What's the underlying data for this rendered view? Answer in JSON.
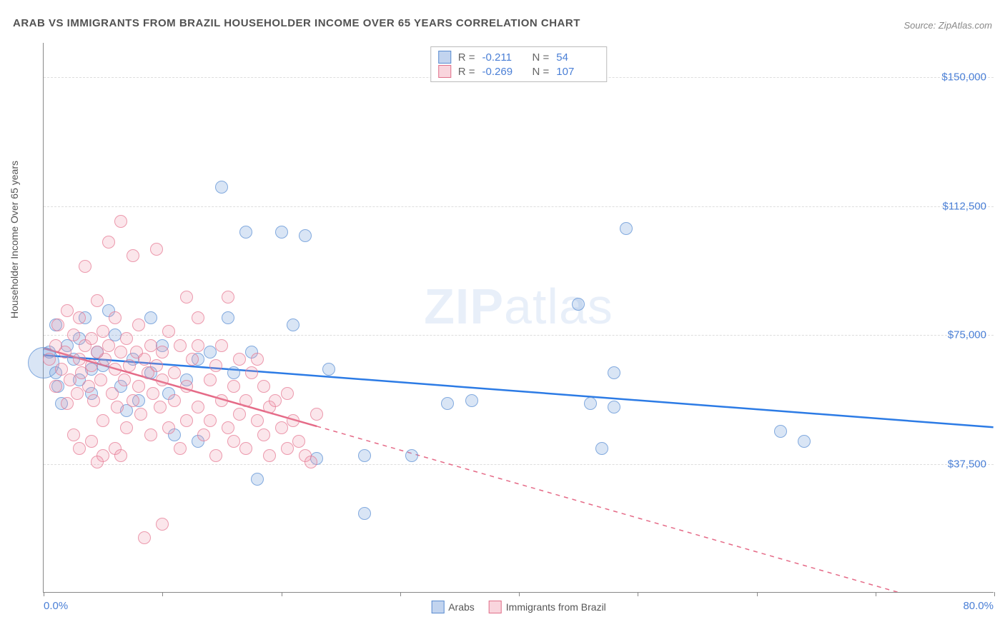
{
  "title": "ARAB VS IMMIGRANTS FROM BRAZIL HOUSEHOLDER INCOME OVER 65 YEARS CORRELATION CHART",
  "source": "Source: ZipAtlas.com",
  "y_axis_label": "Householder Income Over 65 years",
  "watermark": {
    "bold": "ZIP",
    "rest": "atlas"
  },
  "chart": {
    "type": "scatter",
    "x_domain": [
      0,
      80
    ],
    "y_domain": [
      0,
      160000
    ],
    "x_tick_labels": {
      "start": "0.0%",
      "end": "80.0%"
    },
    "x_tick_positions": [
      0,
      10,
      20,
      30,
      40,
      50,
      60,
      70,
      80
    ],
    "y_ticks": [
      {
        "v": 37500,
        "label": "$37,500"
      },
      {
        "v": 75000,
        "label": "$75,000"
      },
      {
        "v": 112500,
        "label": "$112,500"
      },
      {
        "v": 150000,
        "label": "$150,000"
      }
    ],
    "background_color": "#ffffff",
    "grid_color": "#dddddd",
    "colors": {
      "series1_fill": "rgba(120,160,220,0.28)",
      "series1_stroke": "#5a8cd0",
      "series2_fill": "rgba(240,150,170,0.24)",
      "series2_stroke": "#e0708a",
      "trend1": "#2c7be5",
      "trend2": "#e56a87",
      "axis_label": "#4a7fd6"
    },
    "marker_radius": 9,
    "series": [
      {
        "name": "Arabs",
        "key": "s1",
        "R": "-0.211",
        "N": "54",
        "trend": {
          "x1": 0,
          "y1": 69000,
          "x2": 80,
          "y2": 48000,
          "solid_to_x": 80,
          "dashed": false
        },
        "points": [
          [
            0,
            67000,
            22
          ],
          [
            0.5,
            70000
          ],
          [
            1,
            64000
          ],
          [
            1,
            78000
          ],
          [
            1.2,
            60000
          ],
          [
            1.5,
            55000
          ],
          [
            2,
            72000
          ],
          [
            2.5,
            68000
          ],
          [
            3,
            74000
          ],
          [
            3,
            62000
          ],
          [
            3.5,
            80000
          ],
          [
            4,
            65000
          ],
          [
            4,
            58000
          ],
          [
            4.5,
            70000
          ],
          [
            5,
            66000
          ],
          [
            5.5,
            82000
          ],
          [
            6,
            75000
          ],
          [
            6.5,
            60000
          ],
          [
            7,
            53000
          ],
          [
            7.5,
            68000
          ],
          [
            8,
            56000
          ],
          [
            9,
            80000
          ],
          [
            9,
            64000
          ],
          [
            10,
            72000
          ],
          [
            10.5,
            58000
          ],
          [
            11,
            46000
          ],
          [
            12,
            62000
          ],
          [
            13,
            68000
          ],
          [
            13,
            44000
          ],
          [
            14,
            70000
          ],
          [
            15,
            118000
          ],
          [
            15.5,
            80000
          ],
          [
            16,
            64000
          ],
          [
            17,
            105000
          ],
          [
            17.5,
            70000
          ],
          [
            18,
            33000
          ],
          [
            20,
            105000
          ],
          [
            21,
            78000
          ],
          [
            22,
            104000
          ],
          [
            23,
            39000
          ],
          [
            24,
            65000
          ],
          [
            27,
            23000
          ],
          [
            27,
            40000
          ],
          [
            31,
            40000
          ],
          [
            34,
            55000
          ],
          [
            36,
            56000
          ],
          [
            45,
            84000
          ],
          [
            46,
            55000
          ],
          [
            47,
            42000
          ],
          [
            48,
            64000
          ],
          [
            48,
            54000
          ],
          [
            49,
            106000
          ],
          [
            62,
            47000
          ],
          [
            64,
            44000
          ]
        ]
      },
      {
        "name": "Immigrants from Brazil",
        "key": "s2",
        "R": "-0.269",
        "N": "107",
        "trend": {
          "x1": 0,
          "y1": 71000,
          "x2": 80,
          "y2": -8000,
          "solid_to_x": 23,
          "dashed": true
        },
        "points": [
          [
            0.5,
            68000
          ],
          [
            1,
            72000
          ],
          [
            1,
            60000
          ],
          [
            1.2,
            78000
          ],
          [
            1.5,
            65000
          ],
          [
            1.8,
            70000
          ],
          [
            2,
            55000
          ],
          [
            2,
            82000
          ],
          [
            2.2,
            62000
          ],
          [
            2.5,
            75000
          ],
          [
            2.8,
            58000
          ],
          [
            3,
            68000
          ],
          [
            3,
            80000
          ],
          [
            3.2,
            64000
          ],
          [
            3.5,
            72000
          ],
          [
            3.5,
            95000
          ],
          [
            3.8,
            60000
          ],
          [
            4,
            66000
          ],
          [
            4,
            74000
          ],
          [
            4.2,
            56000
          ],
          [
            4.5,
            70000
          ],
          [
            4.5,
            85000
          ],
          [
            4.8,
            62000
          ],
          [
            5,
            76000
          ],
          [
            5,
            50000
          ],
          [
            5.2,
            68000
          ],
          [
            5.5,
            72000
          ],
          [
            5.5,
            102000
          ],
          [
            5.8,
            58000
          ],
          [
            6,
            65000
          ],
          [
            6,
            80000
          ],
          [
            6.2,
            54000
          ],
          [
            6.5,
            70000
          ],
          [
            6.5,
            108000
          ],
          [
            6.8,
            62000
          ],
          [
            7,
            74000
          ],
          [
            7,
            48000
          ],
          [
            7.2,
            66000
          ],
          [
            7.5,
            56000
          ],
          [
            7.5,
            98000
          ],
          [
            7.8,
            70000
          ],
          [
            8,
            60000
          ],
          [
            8,
            78000
          ],
          [
            8.2,
            52000
          ],
          [
            8.5,
            68000
          ],
          [
            8.8,
            64000
          ],
          [
            9,
            72000
          ],
          [
            9,
            46000
          ],
          [
            9.2,
            58000
          ],
          [
            9.5,
            66000
          ],
          [
            9.5,
            100000
          ],
          [
            9.8,
            54000
          ],
          [
            10,
            70000
          ],
          [
            10,
            62000
          ],
          [
            10.5,
            76000
          ],
          [
            10.5,
            48000
          ],
          [
            11,
            64000
          ],
          [
            11,
            56000
          ],
          [
            11.5,
            72000
          ],
          [
            11.5,
            42000
          ],
          [
            12,
            60000
          ],
          [
            12,
            50000
          ],
          [
            12.5,
            68000
          ],
          [
            12,
            86000
          ],
          [
            13,
            54000
          ],
          [
            13,
            72000
          ],
          [
            13.5,
            46000
          ],
          [
            13,
            80000
          ],
          [
            14,
            62000
          ],
          [
            14,
            50000
          ],
          [
            14.5,
            66000
          ],
          [
            14.5,
            40000
          ],
          [
            15,
            56000
          ],
          [
            15,
            72000
          ],
          [
            15.5,
            48000
          ],
          [
            15.5,
            86000
          ],
          [
            16,
            60000
          ],
          [
            16,
            44000
          ],
          [
            16.5,
            68000
          ],
          [
            16.5,
            52000
          ],
          [
            17,
            56000
          ],
          [
            17,
            42000
          ],
          [
            17.5,
            64000
          ],
          [
            18,
            50000
          ],
          [
            18,
            68000
          ],
          [
            18.5,
            46000
          ],
          [
            18.5,
            60000
          ],
          [
            19,
            54000
          ],
          [
            19,
            40000
          ],
          [
            19.5,
            56000
          ],
          [
            20,
            48000
          ],
          [
            20.5,
            42000
          ],
          [
            20.5,
            58000
          ],
          [
            21,
            50000
          ],
          [
            21.5,
            44000
          ],
          [
            22,
            40000
          ],
          [
            22.5,
            38000
          ],
          [
            23,
            52000
          ],
          [
            4,
            44000
          ],
          [
            5,
            40000
          ],
          [
            6,
            42000
          ],
          [
            6.5,
            40000
          ],
          [
            8.5,
            16000
          ],
          [
            10,
            20000
          ],
          [
            2.5,
            46000
          ],
          [
            3,
            42000
          ],
          [
            4.5,
            38000
          ]
        ]
      }
    ]
  },
  "stats_box": {
    "rows": [
      {
        "swatch": "s1",
        "R_label": "R =",
        "R": "-0.211",
        "N_label": "N =",
        "N": "54"
      },
      {
        "swatch": "s2",
        "R_label": "R =",
        "R": "-0.269",
        "N_label": "N =",
        "N": "107"
      }
    ]
  },
  "legend": {
    "items": [
      {
        "swatch": "s1",
        "label": "Arabs"
      },
      {
        "swatch": "s2",
        "label": "Immigrants from Brazil"
      }
    ]
  }
}
